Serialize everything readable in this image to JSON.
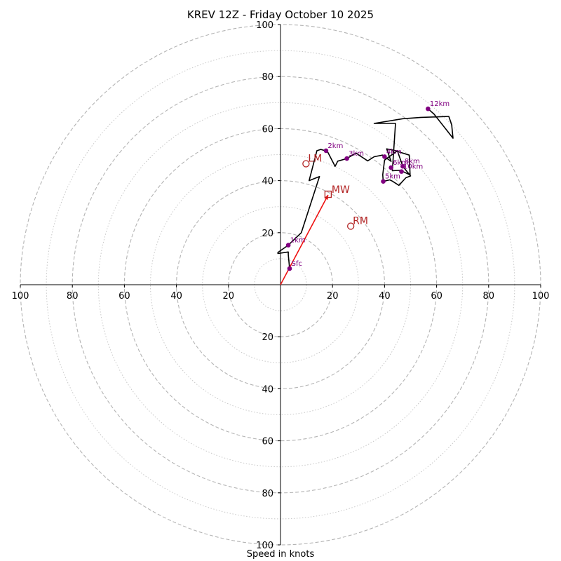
{
  "chart_data": {
    "type": "hodograph",
    "title": "KREV 12Z - Friday October 10 2025",
    "xlabel": "Speed in knots",
    "range": [
      -100,
      100
    ],
    "major_rings": [
      20,
      40,
      60,
      80,
      100
    ],
    "minor_rings": [
      10,
      30,
      50,
      70,
      90
    ],
    "x_ticks": [
      {
        "value": -100,
        "label": "100"
      },
      {
        "value": -80,
        "label": "80"
      },
      {
        "value": -60,
        "label": "60"
      },
      {
        "value": -40,
        "label": "40"
      },
      {
        "value": -20,
        "label": "20"
      },
      {
        "value": 20,
        "label": "20"
      },
      {
        "value": 40,
        "label": "40"
      },
      {
        "value": 60,
        "label": "60"
      },
      {
        "value": 80,
        "label": "80"
      },
      {
        "value": 100,
        "label": "100"
      }
    ],
    "y_ticks": [
      {
        "value": 100,
        "label": "100"
      },
      {
        "value": 80,
        "label": "80"
      },
      {
        "value": 60,
        "label": "60"
      },
      {
        "value": 40,
        "label": "40"
      },
      {
        "value": 20,
        "label": "20"
      },
      {
        "value": -20,
        "label": "20"
      },
      {
        "value": -40,
        "label": "40"
      },
      {
        "value": -60,
        "label": "60"
      },
      {
        "value": -80,
        "label": "80"
      },
      {
        "value": -100,
        "label": "100"
      }
    ],
    "wind_trace": {
      "color": "#000000",
      "points": [
        [
          3.5,
          6.2
        ],
        [
          3,
          11.5
        ],
        [
          3,
          12.6
        ],
        [
          -1,
          12
        ],
        [
          -1,
          12.4
        ],
        [
          3,
          15.2
        ],
        [
          8,
          20
        ],
        [
          15,
          41.6
        ],
        [
          11,
          40
        ],
        [
          14,
          51.5
        ],
        [
          15.5,
          52
        ],
        [
          18,
          51.3
        ],
        [
          21,
          45.5
        ],
        [
          22,
          47.5
        ],
        [
          25.5,
          48.5
        ],
        [
          29,
          50.6
        ],
        [
          33.5,
          47.6
        ],
        [
          36,
          49.2
        ],
        [
          39.2,
          49.8
        ],
        [
          42.5,
          47.4
        ],
        [
          40.8,
          52.2
        ],
        [
          44.8,
          51.4
        ],
        [
          40,
          47.9
        ],
        [
          39.3,
          42.3
        ],
        [
          39.5,
          39.7
        ],
        [
          42,
          40.3
        ],
        [
          43,
          39.8
        ],
        [
          45.5,
          38.2
        ],
        [
          48.2,
          41.1
        ],
        [
          50,
          41.8
        ],
        [
          47,
          45.5
        ],
        [
          45,
          51.2
        ],
        [
          49.5,
          49.8
        ],
        [
          49.8,
          42.2
        ],
        [
          46,
          44
        ],
        [
          43,
          43.8
        ],
        [
          44.2,
          62
        ],
        [
          36,
          62
        ],
        [
          47,
          63.8
        ],
        [
          54,
          64.3
        ],
        [
          64.7,
          64.7
        ],
        [
          65.8,
          61.5
        ],
        [
          66.3,
          56.3
        ],
        [
          59,
          65.6
        ],
        [
          56.7,
          67.6
        ]
      ]
    },
    "height_markers": [
      {
        "label": "Sfc",
        "u": 3.5,
        "v": 6.2
      },
      {
        "label": "1km",
        "u": 3,
        "v": 15.2
      },
      {
        "label": "2km",
        "u": 17.5,
        "v": 51.5
      },
      {
        "label": "3km",
        "u": 25.5,
        "v": 48.5
      },
      {
        "label": "4km",
        "u": 40,
        "v": 49.2
      },
      {
        "label": "5km",
        "u": 39.5,
        "v": 39.7
      },
      {
        "label": "6km",
        "u": 42.5,
        "v": 45
      },
      {
        "label": "8km",
        "u": 47,
        "v": 45.5
      },
      {
        "label": "10km",
        "u": 46.5,
        "v": 43.5
      },
      {
        "label": "12km",
        "u": 56.7,
        "v": 67.6
      }
    ],
    "storm_motion": {
      "color": "#b22222",
      "mean_wind": {
        "label": "MW",
        "u": 18.3,
        "v": 34.5
      },
      "left_mover": {
        "label": "LM",
        "u": 9.8,
        "v": 46.5
      },
      "right_mover": {
        "label": "RM",
        "u": 27,
        "v": 22.5
      }
    }
  }
}
